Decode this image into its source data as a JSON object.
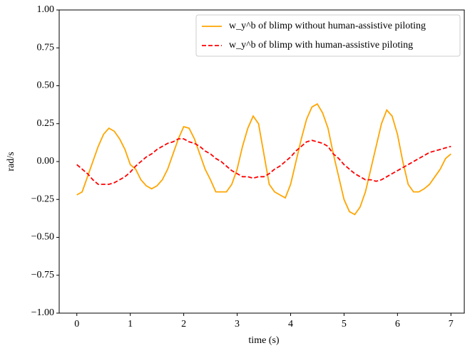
{
  "chart_data": {
    "type": "line",
    "xlabel": "time (s)",
    "ylabel": "rad/s",
    "x": [
      0,
      0.1,
      0.2,
      0.3,
      0.4,
      0.5,
      0.6,
      0.7,
      0.8,
      0.9,
      1,
      1.1,
      1.2,
      1.3,
      1.4,
      1.5,
      1.6,
      1.7,
      1.8,
      1.9,
      2,
      2.1,
      2.2,
      2.3,
      2.4,
      2.5,
      2.6,
      2.7,
      2.8,
      2.9,
      3,
      3.1,
      3.2,
      3.3,
      3.4,
      3.5,
      3.6,
      3.7,
      3.8,
      3.9,
      4,
      4.1,
      4.2,
      4.3,
      4.4,
      4.5,
      4.6,
      4.7,
      4.8,
      4.9,
      5,
      5.1,
      5.2,
      5.3,
      5.4,
      5.5,
      5.6,
      5.7,
      5.8,
      5.9,
      6,
      6.1,
      6.2,
      6.3,
      6.4,
      6.5,
      6.6,
      6.7,
      6.8,
      6.9,
      7
    ],
    "series": [
      {
        "name": "w_y^b of blimp without human-assistive piloting",
        "color": "#ffa500",
        "dash": "solid",
        "values": [
          -0.22,
          -0.2,
          -0.1,
          0,
          0.1,
          0.18,
          0.22,
          0.2,
          0.15,
          0.08,
          -0.02,
          -0.05,
          -0.12,
          -0.16,
          -0.18,
          -0.16,
          -0.12,
          -0.05,
          0.05,
          0.15,
          0.23,
          0.22,
          0.15,
          0.05,
          -0.05,
          -0.12,
          -0.2,
          -0.2,
          -0.2,
          -0.15,
          -0.05,
          0.1,
          0.22,
          0.3,
          0.25,
          0.05,
          -0.15,
          -0.2,
          -0.22,
          -0.24,
          -0.15,
          0,
          0.15,
          0.28,
          0.36,
          0.38,
          0.32,
          0.22,
          0.05,
          -0.1,
          -0.25,
          -0.33,
          -0.35,
          -0.3,
          -0.2,
          -0.05,
          0.1,
          0.25,
          0.34,
          0.3,
          0.18,
          0,
          -0.15,
          -0.2,
          -0.2,
          -0.18,
          -0.15,
          -0.1,
          -0.05,
          0.02,
          0.05
        ]
      },
      {
        "name": "w_y^b of blimp with human-assistive piloting",
        "color": "#ff0000",
        "dash": "dashed",
        "values": [
          -0.02,
          -0.05,
          -0.08,
          -0.12,
          -0.15,
          -0.15,
          -0.15,
          -0.14,
          -0.12,
          -0.1,
          -0.07,
          -0.03,
          0,
          0.03,
          0.05,
          0.08,
          0.1,
          0.12,
          0.13,
          0.15,
          0.15,
          0.13,
          0.12,
          0.1,
          0.07,
          0.05,
          0.02,
          0,
          -0.03,
          -0.06,
          -0.08,
          -0.1,
          -0.1,
          -0.11,
          -0.1,
          -0.1,
          -0.08,
          -0.05,
          -0.03,
          0,
          0.03,
          0.07,
          0.1,
          0.13,
          0.14,
          0.13,
          0.12,
          0.1,
          0.05,
          0.02,
          -0.02,
          -0.05,
          -0.08,
          -0.1,
          -0.12,
          -0.12,
          -0.13,
          -0.12,
          -0.1,
          -0.08,
          -0.06,
          -0.04,
          -0.02,
          0,
          0.02,
          0.04,
          0.06,
          0.07,
          0.08,
          0.09,
          0.1
        ]
      }
    ],
    "xlim": [
      -0.33,
      7.25
    ],
    "ylim": [
      -1,
      1
    ],
    "xticks": [
      0,
      1,
      2,
      3,
      4,
      5,
      6,
      7
    ],
    "yticks": [
      {
        "value": -1,
        "label": "−1.00"
      },
      {
        "value": -0.75,
        "label": "−0.75"
      },
      {
        "value": -0.5,
        "label": "−0.50"
      },
      {
        "value": -0.25,
        "label": "−0.25"
      },
      {
        "value": 0,
        "label": "0.00"
      },
      0.25,
      {
        "value": 0.5,
        "label": "0.50"
      },
      0.75,
      {
        "value": 1,
        "label": "1.00"
      }
    ],
    "legend": "upper right",
    "grid": false
  }
}
